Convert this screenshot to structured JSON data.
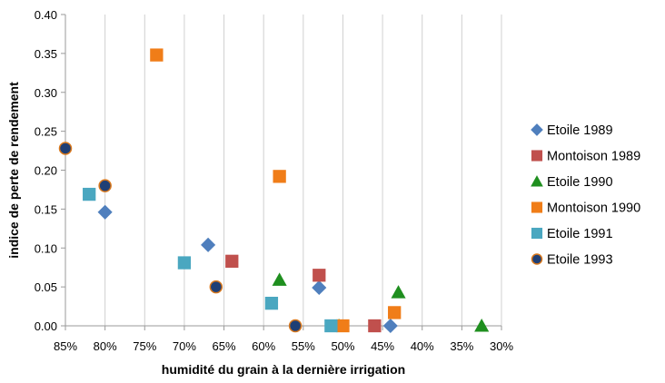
{
  "chart_data": {
    "type": "scatter",
    "title": "",
    "xlabel": "humidité du grain à la dernière irrigation",
    "ylabel": "indice de perte de rendement",
    "x_unit": "percent",
    "x_reversed": true,
    "xlim": [
      85,
      30
    ],
    "ylim": [
      0,
      0.4
    ],
    "x_ticks": [
      85,
      80,
      75,
      70,
      65,
      60,
      55,
      50,
      45,
      40,
      35,
      30
    ],
    "x_tick_labels": [
      "85%",
      "80%",
      "75%",
      "70%",
      "65%",
      "60%",
      "55%",
      "50%",
      "45%",
      "40%",
      "35%",
      "30%"
    ],
    "y_ticks": [
      0,
      0.05,
      0.1,
      0.15,
      0.2,
      0.25,
      0.3,
      0.35,
      0.4
    ],
    "y_tick_labels": [
      "0.00",
      "0.05",
      "0.10",
      "0.15",
      "0.20",
      "0.25",
      "0.30",
      "0.35",
      "0.40"
    ],
    "grid": "vertical",
    "legend_position": "right",
    "series": [
      {
        "name": "Etoile 1989",
        "marker": "diamond",
        "color": "#4f7fbd",
        "points": [
          [
            80,
            0.146
          ],
          [
            67,
            0.104
          ],
          [
            53,
            0.049
          ],
          [
            44,
            0.0
          ]
        ]
      },
      {
        "name": "Montoison 1989",
        "marker": "square",
        "color": "#c0504d",
        "points": [
          [
            64,
            0.083
          ],
          [
            53,
            0.065
          ],
          [
            46,
            0.0
          ]
        ]
      },
      {
        "name": "Etoile 1990",
        "marker": "triangle",
        "color": "#1f8f1f",
        "points": [
          [
            58,
            0.059
          ],
          [
            43,
            0.043
          ],
          [
            32.5,
            0.0
          ],
          [
            50.5,
            0.0
          ]
        ]
      },
      {
        "name": "Montoison 1990",
        "marker": "square",
        "color": "#f07d18",
        "points": [
          [
            73.5,
            0.348
          ],
          [
            58,
            0.192
          ],
          [
            43.5,
            0.017
          ],
          [
            50,
            0.0
          ]
        ]
      },
      {
        "name": "Etoile 1991",
        "marker": "square",
        "color": "#4aa7c0",
        "points": [
          [
            82,
            0.169
          ],
          [
            70,
            0.081
          ],
          [
            59,
            0.029
          ],
          [
            51.5,
            0.0
          ]
        ]
      },
      {
        "name": "Etoile 1993",
        "marker": "circle",
        "color": "#1f3f75",
        "outline": "#d9781c",
        "points": [
          [
            85,
            0.228
          ],
          [
            80,
            0.18
          ],
          [
            66,
            0.05
          ],
          [
            56,
            0.0
          ]
        ]
      }
    ]
  }
}
